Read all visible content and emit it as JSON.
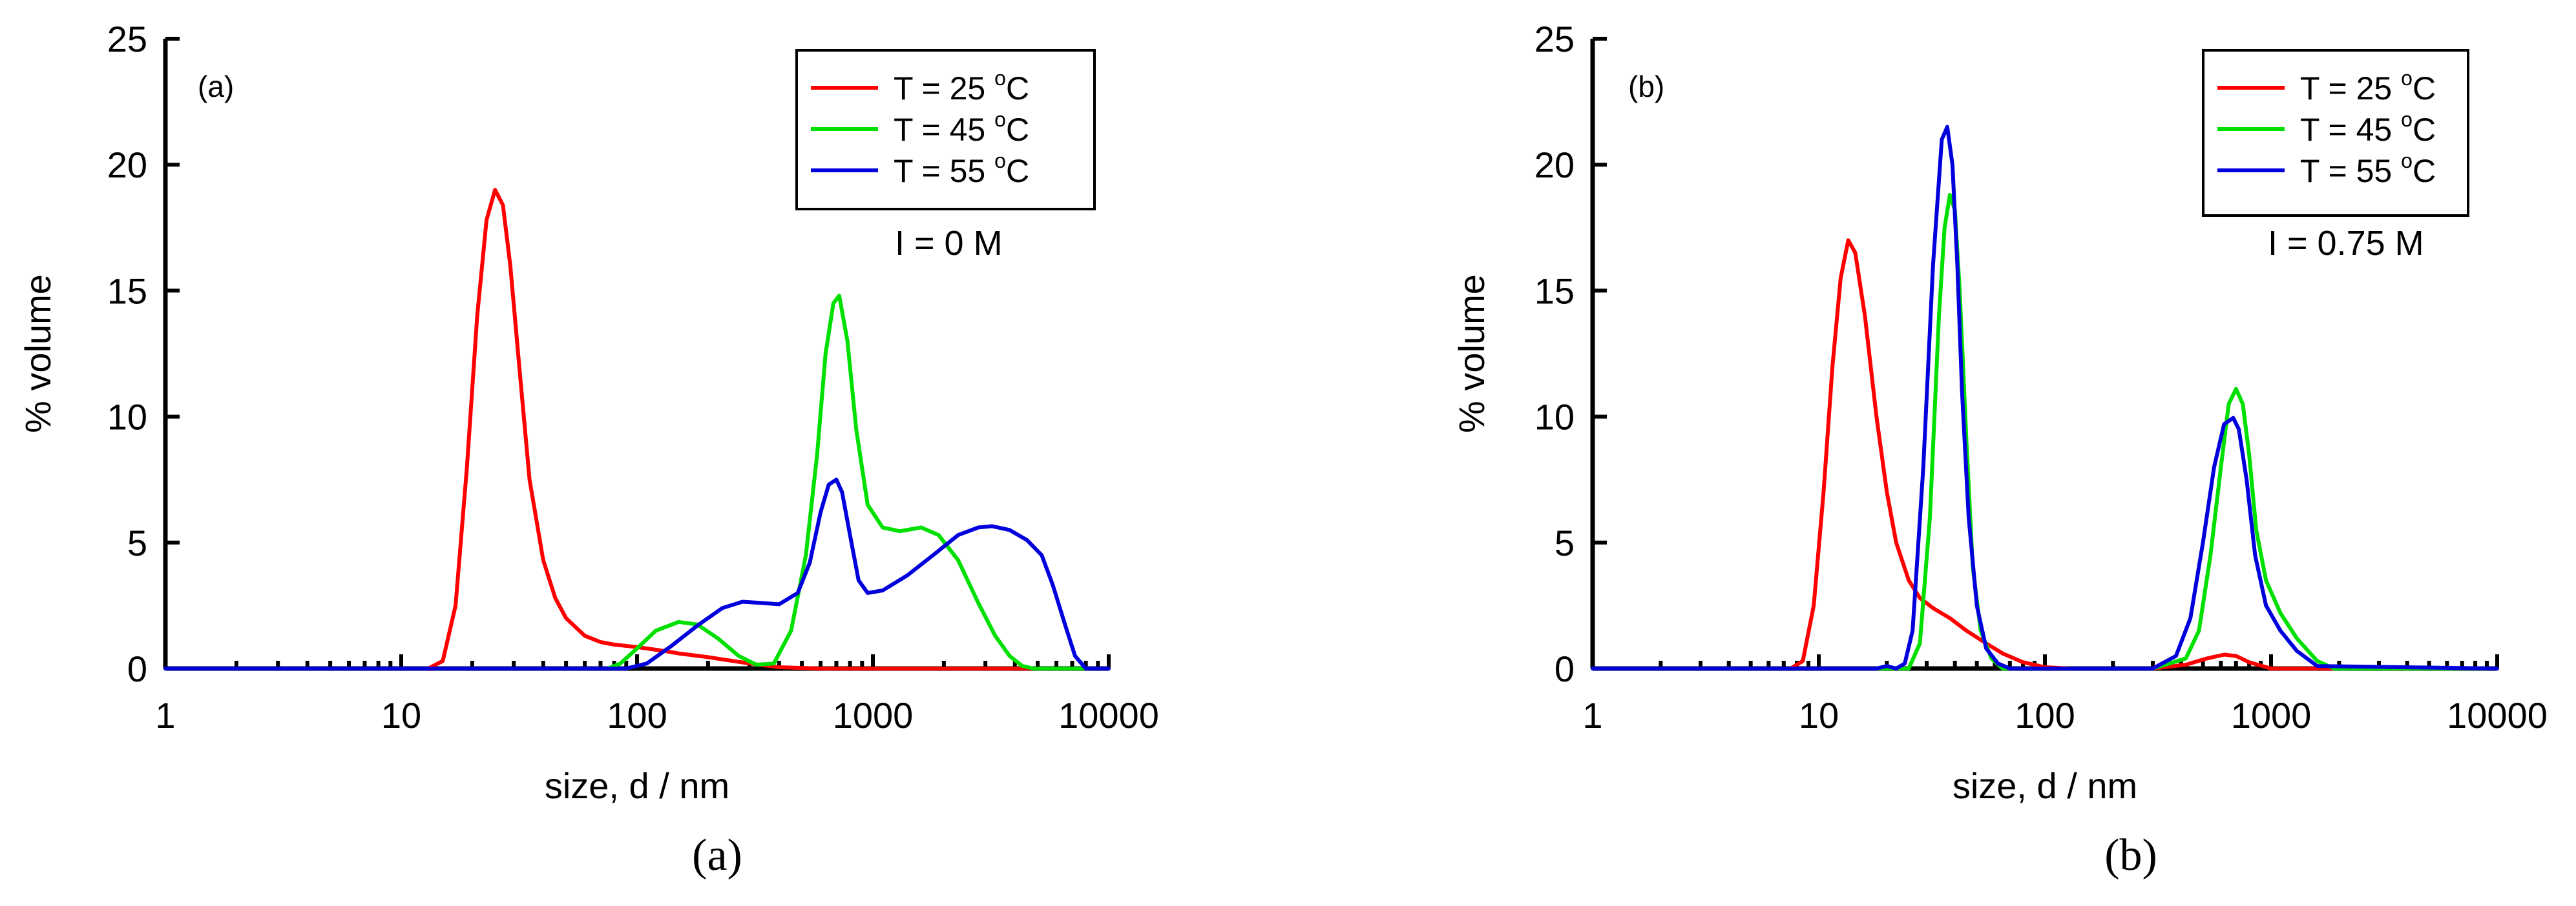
{
  "chart_data": [
    {
      "type": "line",
      "panel": "a",
      "panel_tag": "(a)",
      "caption": "(a)",
      "annotation": "I = 0 M",
      "xlabel": "size, d / nm",
      "ylabel": "% volume",
      "xscale": "log",
      "xlim": [
        1,
        10000
      ],
      "ylim": [
        0,
        25
      ],
      "x_ticks": [
        1,
        10,
        100,
        1000,
        10000
      ],
      "x_tick_labels": [
        "1",
        "10",
        "100",
        "1000",
        "10000"
      ],
      "y_ticks": [
        0,
        5,
        10,
        15,
        20,
        25
      ],
      "y_tick_labels": [
        "0",
        "5",
        "10",
        "15",
        "20",
        "25"
      ],
      "legend_position": "top-right",
      "series": [
        {
          "name": "T = 25 °C",
          "label_text": "T = 25 ",
          "label_sup": "o",
          "label_unit": "C",
          "color": "#ff0000",
          "x": [
            1,
            10,
            13,
            15,
            17,
            19,
            21,
            23,
            25,
            27,
            29,
            32,
            35,
            40,
            45,
            50,
            60,
            70,
            80,
            100,
            130,
            150,
            200,
            300,
            400,
            600,
            1000,
            10000
          ],
          "y": [
            0,
            0,
            0,
            0.3,
            2.5,
            8,
            14,
            17.8,
            19,
            18.4,
            16,
            11.5,
            7.5,
            4.3,
            2.8,
            2.0,
            1.3,
            1.05,
            0.95,
            0.85,
            0.7,
            0.6,
            0.45,
            0.2,
            0.05,
            0,
            0,
            0
          ]
        },
        {
          "name": "T = 45 °C",
          "label_text": "T = 45 ",
          "label_sup": "o",
          "label_unit": "C",
          "color": "#00e000",
          "x": [
            1,
            75,
            85,
            100,
            120,
            150,
            180,
            220,
            270,
            320,
            380,
            450,
            520,
            580,
            630,
            680,
            720,
            780,
            850,
            950,
            1100,
            1300,
            1600,
            1900,
            2300,
            2800,
            3300,
            3800,
            4300,
            4800,
            10000
          ],
          "y": [
            0,
            0,
            0.2,
            0.8,
            1.5,
            1.85,
            1.75,
            1.2,
            0.5,
            0.15,
            0.2,
            1.5,
            4.5,
            8.5,
            12.5,
            14.5,
            14.8,
            13,
            9.5,
            6.5,
            5.6,
            5.45,
            5.6,
            5.3,
            4.3,
            2.6,
            1.3,
            0.5,
            0.1,
            0,
            0
          ]
        },
        {
          "name": "T = 55 °C",
          "label_text": "T = 55 ",
          "label_sup": "o",
          "label_unit": "C",
          "color": "#0000dd",
          "x": [
            1,
            90,
            110,
            140,
            180,
            230,
            280,
            340,
            400,
            480,
            540,
            600,
            650,
            700,
            740,
            800,
            870,
            950,
            1100,
            1400,
            1800,
            2300,
            2800,
            3200,
            3800,
            4500,
            5200,
            5800,
            6500,
            7200,
            8000,
            10000
          ],
          "y": [
            0,
            0,
            0.2,
            0.9,
            1.7,
            2.4,
            2.65,
            2.6,
            2.55,
            3.0,
            4.2,
            6.2,
            7.3,
            7.5,
            7.0,
            5.3,
            3.5,
            3.0,
            3.1,
            3.7,
            4.5,
            5.3,
            5.6,
            5.65,
            5.5,
            5.1,
            4.5,
            3.3,
            1.8,
            0.5,
            0,
            0
          ]
        }
      ]
    },
    {
      "type": "line",
      "panel": "b",
      "panel_tag": "(b)",
      "caption": "(b)",
      "annotation": "I = 0.75 M",
      "xlabel": "size, d / nm",
      "ylabel": "% volume",
      "xscale": "log",
      "xlim": [
        1,
        10000
      ],
      "ylim": [
        0,
        25
      ],
      "x_ticks": [
        1,
        10,
        100,
        1000,
        10000
      ],
      "x_tick_labels": [
        "1",
        "10",
        "100",
        "1000",
        "10000"
      ],
      "y_ticks": [
        0,
        5,
        10,
        15,
        20,
        25
      ],
      "y_tick_labels": [
        "0",
        "5",
        "10",
        "15",
        "20",
        "25"
      ],
      "legend_position": "top-right",
      "series": [
        {
          "name": "T = 25 °C",
          "label_text": "T = 25 ",
          "label_sup": "o",
          "label_unit": "C",
          "color": "#ff0000",
          "x": [
            1,
            7.5,
            8.5,
            9.5,
            10.5,
            11.5,
            12.5,
            13.5,
            14.5,
            16,
            18,
            20,
            22,
            25,
            28,
            32,
            38,
            45,
            55,
            65,
            80,
            100,
            130,
            160,
            300,
            420,
            520,
            620,
            700,
            800,
            1000,
            10000
          ],
          "y": [
            0,
            0,
            0.3,
            2.5,
            7,
            12,
            15.5,
            17,
            16.5,
            14,
            10,
            7,
            5,
            3.5,
            2.8,
            2.4,
            2.0,
            1.5,
            1.0,
            0.6,
            0.25,
            0.05,
            0,
            0,
            0,
            0.15,
            0.4,
            0.55,
            0.5,
            0.25,
            0,
            0
          ]
        },
        {
          "name": "T = 45 °C",
          "label_text": "T = 45 ",
          "label_sup": "o",
          "label_unit": "C",
          "color": "#00e000",
          "x": [
            1,
            25,
            28,
            31,
            34,
            36,
            38,
            40,
            42,
            45,
            48,
            52,
            58,
            65,
            75,
            90,
            300,
            420,
            480,
            540,
            600,
            650,
            700,
            750,
            800,
            860,
            950,
            1100,
            1300,
            1600,
            1900,
            10000
          ],
          "y": [
            0,
            0,
            1,
            6,
            14,
            17.5,
            18.8,
            18.2,
            15,
            9,
            4,
            1.5,
            0.4,
            0,
            0,
            0,
            0,
            0.4,
            1.5,
            4.5,
            8,
            10.5,
            11.1,
            10.5,
            8.5,
            5.5,
            3.5,
            2.2,
            1.2,
            0.3,
            0,
            0
          ]
        },
        {
          "name": "T = 55 °C",
          "label_text": "T = 55 ",
          "label_sup": "o",
          "label_unit": "C",
          "color": "#0000dd",
          "x": [
            1,
            18,
            20,
            22,
            24,
            26,
            29,
            32,
            35,
            37,
            39,
            41,
            43,
            46,
            50,
            55,
            62,
            70,
            80,
            300,
            380,
            440,
            500,
            560,
            620,
            680,
            720,
            780,
            850,
            950,
            1100,
            1300,
            1600,
            10000
          ],
          "y": [
            0,
            0,
            0.1,
            0,
            0.2,
            1.5,
            8,
            16,
            21,
            21.5,
            20,
            16,
            11,
            6,
            2.5,
            0.8,
            0.2,
            0,
            0,
            0,
            0.5,
            2,
            5,
            8,
            9.7,
            9.95,
            9.5,
            7.5,
            4.5,
            2.5,
            1.5,
            0.7,
            0.1,
            0
          ]
        }
      ]
    }
  ]
}
